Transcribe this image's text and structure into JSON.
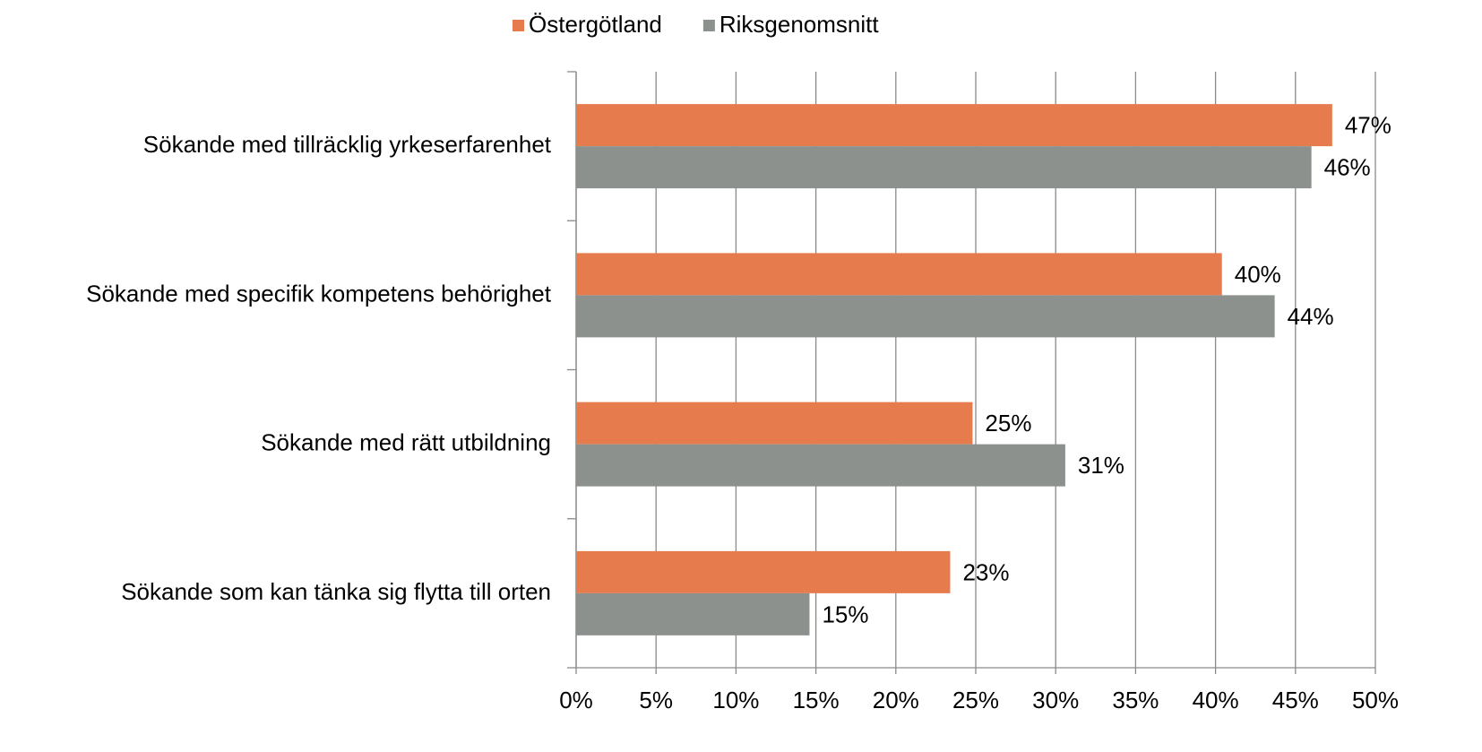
{
  "chart_data": {
    "type": "bar",
    "orientation": "horizontal",
    "categories": [
      "Sökande med tillräcklig yrkeserfarenhet",
      "Sökande med specifik kompetens behörighet",
      "Sökande med rätt utbildning",
      "Sökande som kan tänka sig flytta till orten"
    ],
    "series": [
      {
        "name": "Östergötland",
        "color": "#e67c4e",
        "values": [
          47.3,
          40.4,
          24.8,
          23.4
        ],
        "value_labels": [
          "47%",
          "40%",
          "25%",
          "23%"
        ]
      },
      {
        "name": "Riksgenomsnitt",
        "color": "#8c918e",
        "values": [
          46.0,
          43.7,
          30.6,
          14.6
        ],
        "value_labels": [
          "46%",
          "44%",
          "31%",
          "15%"
        ]
      }
    ],
    "xlim": [
      0,
      50
    ],
    "xticks": [
      {
        "value": 0,
        "label": "0%"
      },
      {
        "value": 5,
        "label": "5%"
      },
      {
        "value": 10,
        "label": "10%"
      },
      {
        "value": 15,
        "label": "15%"
      },
      {
        "value": 20,
        "label": "20%"
      },
      {
        "value": 25,
        "label": "25%"
      },
      {
        "value": 30,
        "label": "30%"
      },
      {
        "value": 35,
        "label": "35%"
      },
      {
        "value": 40,
        "label": "40%"
      },
      {
        "value": 45,
        "label": "45%"
      },
      {
        "value": 50,
        "label": "50%"
      }
    ],
    "grid": true,
    "legend": "top"
  }
}
